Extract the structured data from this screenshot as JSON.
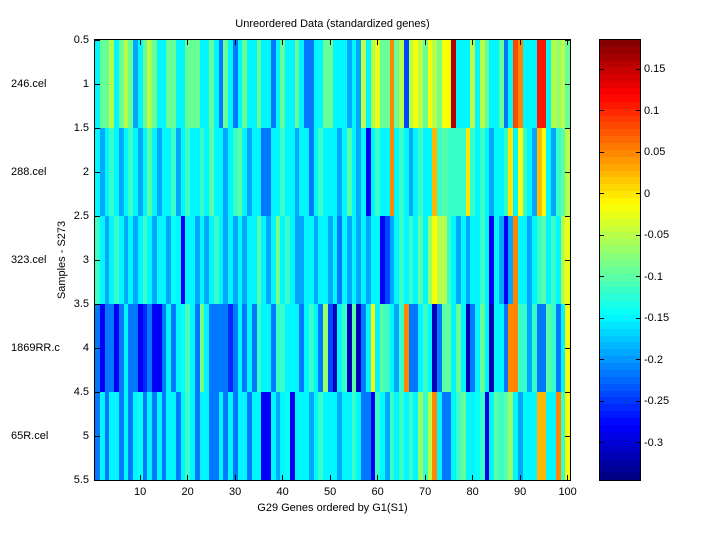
{
  "figure": {
    "title": "Unreordered Data (standardized genes)",
    "xlabel": "G29 Genes ordered by G1(S1)",
    "ylabel": "Samples - S273"
  },
  "axes": {
    "sample_labels": [
      "246.cel",
      "288.cel",
      "323.cel",
      "1869RR.c",
      "65R.cel"
    ],
    "y_tick_labels": [
      "0.5",
      "1",
      "1.5",
      "2",
      "2.5",
      "3",
      "3.5",
      "4",
      "4.5",
      "5",
      "5.5"
    ],
    "x_tick_labels": [
      "10",
      "20",
      "30",
      "40",
      "50",
      "60",
      "70",
      "80",
      "90",
      "100"
    ]
  },
  "colorbar": {
    "tick_labels": [
      "0.15",
      "0.1",
      "0.05",
      "0",
      "-0.05",
      "-0.1",
      "-0.15",
      "-0.2",
      "-0.25",
      "-0.3"
    ],
    "vmin": -0.345,
    "vmax": 0.185
  },
  "chart_data": {
    "type": "heatmap",
    "title": "Unreordered Data (standardized genes)",
    "xlabel": "G29 Genes ordered by G1(S1)",
    "ylabel": "Samples - S273",
    "colormap": "jet",
    "clim": [
      -0.345,
      0.185
    ],
    "n_rows": 5,
    "n_cols": 100,
    "x_range": [
      0.5,
      100.5
    ],
    "y_range": [
      0.5,
      5.5
    ],
    "row_labels": [
      "246.cel",
      "288.cel",
      "323.cel",
      "1869RR.c",
      "65R.cel"
    ],
    "values": [
      [
        -0.15,
        -0.09,
        -0.09,
        -0.05,
        -0.15,
        -0.09,
        -0.05,
        -0.09,
        -0.19,
        -0.15,
        -0.09,
        -0.05,
        -0.09,
        -0.15,
        -0.15,
        -0.09,
        -0.09,
        -0.15,
        -0.15,
        -0.09,
        -0.09,
        -0.09,
        -0.15,
        -0.15,
        -0.09,
        -0.15,
        -0.22,
        -0.09,
        -0.15,
        -0.22,
        -0.15,
        -0.09,
        -0.15,
        -0.15,
        -0.09,
        -0.15,
        -0.15,
        -0.22,
        -0.15,
        -0.09,
        -0.15,
        -0.15,
        -0.09,
        -0.15,
        -0.22,
        -0.22,
        -0.15,
        -0.15,
        -0.09,
        -0.09,
        -0.15,
        -0.15,
        -0.15,
        -0.19,
        -0.15,
        -0.19,
        -0.05,
        -0.15,
        -0.05,
        -0.03,
        -0.09,
        -0.09,
        0.05,
        -0.09,
        -0.05,
        -0.24,
        -0.05,
        -0.02,
        -0.05,
        -0.09,
        -0.02,
        -0.05,
        -0.08,
        -0.02,
        -0.02,
        0.16,
        -0.15,
        -0.15,
        -0.15,
        -0.05,
        -0.15,
        -0.05,
        -0.09,
        -0.15,
        -0.15,
        -0.09,
        -0.22,
        -0.15,
        0.08,
        0.05,
        -0.15,
        -0.15,
        -0.15,
        0.11,
        0.11,
        -0.15,
        -0.05,
        -0.07,
        -0.05,
        -0.09
      ],
      [
        -0.15,
        -0.19,
        -0.15,
        -0.12,
        -0.15,
        -0.19,
        -0.15,
        -0.12,
        -0.15,
        -0.19,
        -0.15,
        -0.1,
        -0.15,
        -0.19,
        -0.15,
        -0.15,
        -0.12,
        -0.19,
        -0.15,
        -0.12,
        -0.15,
        -0.15,
        -0.12,
        -0.15,
        -0.1,
        -0.15,
        -0.15,
        -0.19,
        -0.15,
        -0.12,
        -0.1,
        -0.15,
        -0.19,
        -0.15,
        -0.15,
        -0.22,
        -0.22,
        -0.15,
        -0.15,
        -0.12,
        -0.15,
        -0.15,
        -0.19,
        -0.15,
        -0.15,
        -0.22,
        -0.15,
        -0.12,
        -0.15,
        -0.15,
        -0.15,
        -0.19,
        -0.15,
        -0.1,
        -0.15,
        -0.19,
        -0.15,
        -0.28,
        -0.15,
        -0.12,
        -0.15,
        -0.15,
        0.05,
        -0.15,
        -0.12,
        -0.15,
        -0.19,
        -0.15,
        -0.12,
        -0.15,
        -0.15,
        0.02,
        -0.12,
        -0.1,
        -0.12,
        -0.12,
        -0.12,
        -0.12,
        0.0,
        -0.12,
        -0.15,
        -0.12,
        -0.15,
        -0.19,
        -0.15,
        -0.15,
        -0.12,
        0.0,
        -0.15,
        -0.02,
        -0.12,
        -0.15,
        -0.19,
        0.02,
        -0.02,
        -0.15,
        -0.19,
        -0.12,
        -0.1,
        -0.05
      ],
      [
        -0.12,
        -0.15,
        -0.19,
        -0.15,
        -0.12,
        -0.15,
        -0.19,
        -0.15,
        -0.19,
        -0.15,
        -0.12,
        -0.15,
        -0.19,
        -0.15,
        -0.15,
        -0.19,
        -0.14,
        -0.15,
        -0.28,
        -0.15,
        -0.15,
        -0.19,
        -0.15,
        -0.19,
        -0.15,
        -0.12,
        -0.15,
        -0.19,
        -0.15,
        -0.19,
        -0.15,
        -0.19,
        -0.15,
        -0.15,
        -0.1,
        -0.15,
        -0.19,
        -0.15,
        -0.08,
        -0.15,
        -0.12,
        -0.15,
        -0.19,
        -0.19,
        -0.15,
        -0.15,
        -0.19,
        -0.15,
        -0.15,
        -0.19,
        -0.15,
        -0.22,
        -0.15,
        -0.19,
        -0.15,
        -0.19,
        -0.15,
        -0.19,
        -0.15,
        -0.15,
        -0.28,
        -0.24,
        -0.19,
        -0.15,
        -0.12,
        -0.15,
        -0.12,
        -0.15,
        -0.1,
        -0.15,
        -0.07,
        -0.02,
        -0.05,
        -0.05,
        -0.12,
        -0.15,
        -0.19,
        -0.15,
        -0.19,
        -0.15,
        -0.15,
        -0.12,
        -0.15,
        -0.28,
        -0.15,
        -0.19,
        -0.28,
        -0.19,
        0.05,
        -0.15,
        -0.15,
        -0.19,
        -0.15,
        -0.12,
        -0.1,
        -0.15,
        -0.12,
        -0.15,
        -0.05,
        -0.03
      ],
      [
        -0.22,
        -0.28,
        -0.22,
        -0.22,
        -0.28,
        -0.22,
        -0.15,
        -0.22,
        -0.22,
        -0.28,
        -0.26,
        -0.22,
        -0.28,
        -0.28,
        -0.22,
        -0.15,
        -0.22,
        -0.15,
        -0.14,
        -0.11,
        -0.15,
        -0.22,
        -0.08,
        -0.15,
        -0.22,
        -0.22,
        -0.22,
        -0.22,
        -0.26,
        -0.22,
        -0.15,
        -0.22,
        -0.15,
        -0.22,
        -0.12,
        -0.15,
        -0.15,
        -0.22,
        -0.12,
        -0.12,
        -0.15,
        -0.15,
        -0.15,
        -0.22,
        -0.15,
        -0.12,
        -0.15,
        -0.22,
        -0.07,
        -0.24,
        -0.32,
        -0.15,
        -0.12,
        -0.32,
        -0.1,
        -0.32,
        -0.22,
        -0.15,
        -0.02,
        -0.15,
        -0.1,
        -0.12,
        -0.15,
        -0.19,
        -0.12,
        0.05,
        -0.22,
        -0.22,
        -0.15,
        -0.12,
        -0.15,
        -0.32,
        -0.22,
        -0.1,
        -0.09,
        -0.15,
        -0.09,
        -0.15,
        -0.32,
        -0.22,
        -0.15,
        -0.09,
        -0.15,
        -0.32,
        -0.15,
        -0.15,
        -0.22,
        0.05,
        0.05,
        -0.12,
        -0.12,
        -0.19,
        -0.12,
        -0.22,
        -0.22,
        -0.1,
        -0.12,
        -0.22,
        -0.15,
        -0.02
      ],
      [
        -0.22,
        -0.15,
        -0.22,
        -0.15,
        -0.15,
        -0.22,
        -0.15,
        -0.22,
        -0.15,
        -0.14,
        -0.22,
        -0.15,
        -0.22,
        -0.15,
        -0.22,
        -0.15,
        -0.15,
        -0.22,
        -0.15,
        -0.12,
        -0.15,
        -0.22,
        -0.15,
        -0.15,
        -0.22,
        -0.22,
        -0.15,
        -0.22,
        -0.15,
        -0.22,
        -0.15,
        -0.15,
        -0.22,
        -0.15,
        -0.15,
        -0.28,
        -0.28,
        -0.15,
        -0.19,
        -0.15,
        -0.14,
        -0.28,
        -0.15,
        -0.15,
        -0.15,
        -0.19,
        -0.15,
        -0.12,
        -0.15,
        -0.15,
        -0.15,
        -0.19,
        -0.15,
        -0.15,
        -0.12,
        -0.15,
        -0.22,
        -0.22,
        -0.28,
        -0.12,
        -0.15,
        -0.19,
        -0.12,
        -0.15,
        -0.12,
        -0.15,
        -0.12,
        -0.15,
        -0.07,
        -0.12,
        -0.05,
        0.05,
        -0.15,
        -0.22,
        -0.22,
        -0.15,
        -0.12,
        -0.09,
        -0.15,
        -0.15,
        -0.14,
        -0.12,
        -0.28,
        -0.15,
        -0.1,
        -0.12,
        -0.1,
        -0.07,
        -0.15,
        -0.19,
        -0.15,
        -0.15,
        -0.15,
        0.02,
        0.02,
        -0.15,
        -0.15,
        0.05,
        -0.12,
        -0.02
      ]
    ]
  }
}
